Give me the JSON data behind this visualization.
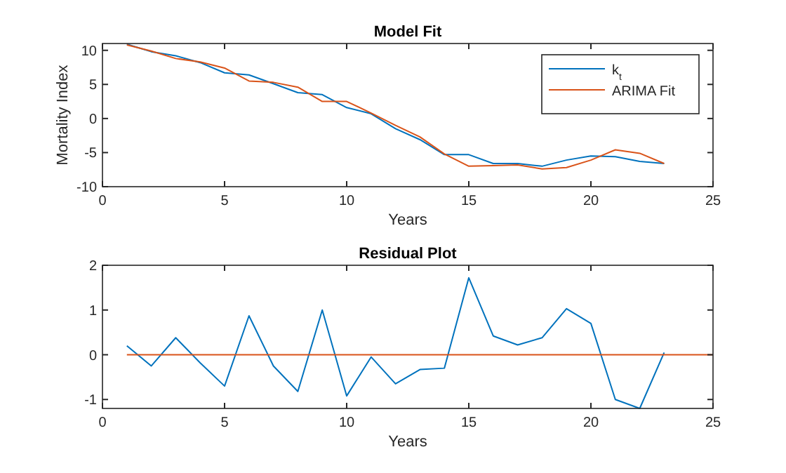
{
  "chart_data": [
    {
      "type": "line",
      "title": "Model Fit",
      "xlabel": "Years",
      "ylabel": "Mortality Index",
      "xlim": [
        0,
        25
      ],
      "xticks": [
        0,
        5,
        10,
        15,
        20,
        25
      ],
      "ylim": [
        -10,
        11
      ],
      "yticks": [
        -10,
        -5,
        0,
        5,
        10
      ],
      "legend": "top right",
      "grid": false,
      "series": [
        {
          "name": "k$_{t}$",
          "color": "#0072bd",
          "x": [
            1,
            2,
            3,
            4,
            5,
            6,
            7,
            8,
            9,
            10,
            11,
            12,
            13,
            14,
            15,
            16,
            17,
            18,
            19,
            20,
            21,
            22,
            23
          ],
          "values": [
            10.9,
            9.8,
            9.2,
            8.2,
            6.7,
            6.4,
            5.1,
            3.8,
            3.5,
            1.6,
            0.7,
            -1.5,
            -3.1,
            -5.3,
            -5.3,
            -6.6,
            -6.6,
            -7.0,
            -6.1,
            -5.5,
            -5.6,
            -6.3,
            -6.6
          ]
        },
        {
          "name": "ARIMA Fit",
          "color": "#d95319",
          "x": [
            1,
            2,
            3,
            4,
            5,
            6,
            7,
            8,
            9,
            10,
            11,
            12,
            13,
            14,
            15,
            16,
            17,
            18,
            19,
            20,
            21,
            22,
            23
          ],
          "values": [
            10.8,
            9.9,
            8.8,
            8.3,
            7.4,
            5.5,
            5.3,
            4.6,
            2.5,
            2.5,
            0.8,
            -1.0,
            -2.7,
            -5.2,
            -7.0,
            -6.9,
            -6.8,
            -7.4,
            -7.2,
            -6.1,
            -4.6,
            -5.1,
            -6.6
          ]
        }
      ]
    },
    {
      "type": "line",
      "title": "Residual Plot",
      "xlabel": "Years",
      "xlim": [
        0,
        25
      ],
      "xticks": [
        0,
        5,
        10,
        15,
        20,
        25
      ],
      "ylim": [
        -1.2,
        2
      ],
      "yticks": [
        -1,
        0,
        1,
        2
      ],
      "legend": false,
      "grid": false,
      "series": [
        {
          "color": "#0072bd",
          "x": [
            1,
            2,
            3,
            4,
            5,
            6,
            7,
            8,
            9,
            10,
            11,
            12,
            13,
            14,
            15,
            16,
            17,
            18,
            19,
            20,
            21,
            22,
            23
          ],
          "values": [
            0.2,
            -0.25,
            0.38,
            -0.18,
            -0.7,
            0.87,
            -0.25,
            -0.82,
            1.0,
            -0.92,
            -0.05,
            -0.65,
            -0.33,
            -0.3,
            1.72,
            0.42,
            0.22,
            0.38,
            1.03,
            0.7,
            -1.0,
            -1.2,
            0.05
          ]
        },
        {
          "color": "#d95319",
          "x": [
            1,
            25
          ],
          "values": [
            0,
            0
          ]
        }
      ]
    }
  ]
}
